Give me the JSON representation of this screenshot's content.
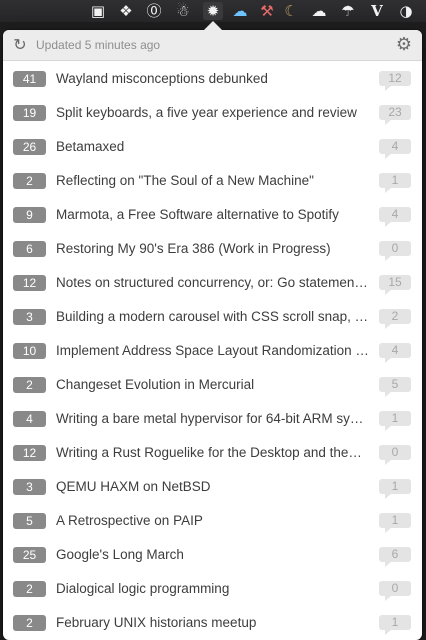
{
  "menubar": {
    "icons": [
      "clipboard-icon",
      "dropbox-icon",
      "sync-icon",
      "alien-icon",
      "hacker-news-icon",
      "weather-icon",
      "hammer-icon",
      "moon-icon",
      "cloud-upload-icon",
      "cloud-icon",
      "v-icon",
      "toggle-icon"
    ]
  },
  "header": {
    "updated_text": "Updated 5 minutes ago"
  },
  "stories": [
    {
      "points": "41",
      "title": "Wayland misconceptions debunked",
      "comments": "12"
    },
    {
      "points": "19",
      "title": "Split keyboards, a five year experience and review",
      "comments": "23"
    },
    {
      "points": "26",
      "title": "Betamaxed",
      "comments": "4"
    },
    {
      "points": "2",
      "title": "Reflecting on \"The Soul of a New Machine\"",
      "comments": "1"
    },
    {
      "points": "9",
      "title": "Marmota, a Free Software alternative to Spotify",
      "comments": "4"
    },
    {
      "points": "6",
      "title": "Restoring My 90's Era 386 (Work in Progress)",
      "comments": "0"
    },
    {
      "points": "12",
      "title": "Notes on structured concurrency, or: Go statemen…",
      "comments": "15"
    },
    {
      "points": "3",
      "title": "Building a modern carousel with CSS scroll snap, s…",
      "comments": "2"
    },
    {
      "points": "10",
      "title": "Implement Address Space Layout Randomization (…",
      "comments": "4"
    },
    {
      "points": "2",
      "title": "Changeset Evolution in Mercurial",
      "comments": "5"
    },
    {
      "points": "4",
      "title": "Writing a bare metal hypervisor for 64-bit ARM sys…",
      "comments": "1"
    },
    {
      "points": "12",
      "title": "Writing a Rust Roguelike for the Desktop and the…",
      "comments": "0"
    },
    {
      "points": "3",
      "title": "QEMU HAXM on NetBSD",
      "comments": "1"
    },
    {
      "points": "5",
      "title": "A Retrospective on PAIP",
      "comments": "1"
    },
    {
      "points": "25",
      "title": "Google's Long March",
      "comments": "6"
    },
    {
      "points": "2",
      "title": "Dialogical logic programming",
      "comments": "0"
    },
    {
      "points": "2",
      "title": "February UNIX historians meetup",
      "comments": "1"
    }
  ]
}
